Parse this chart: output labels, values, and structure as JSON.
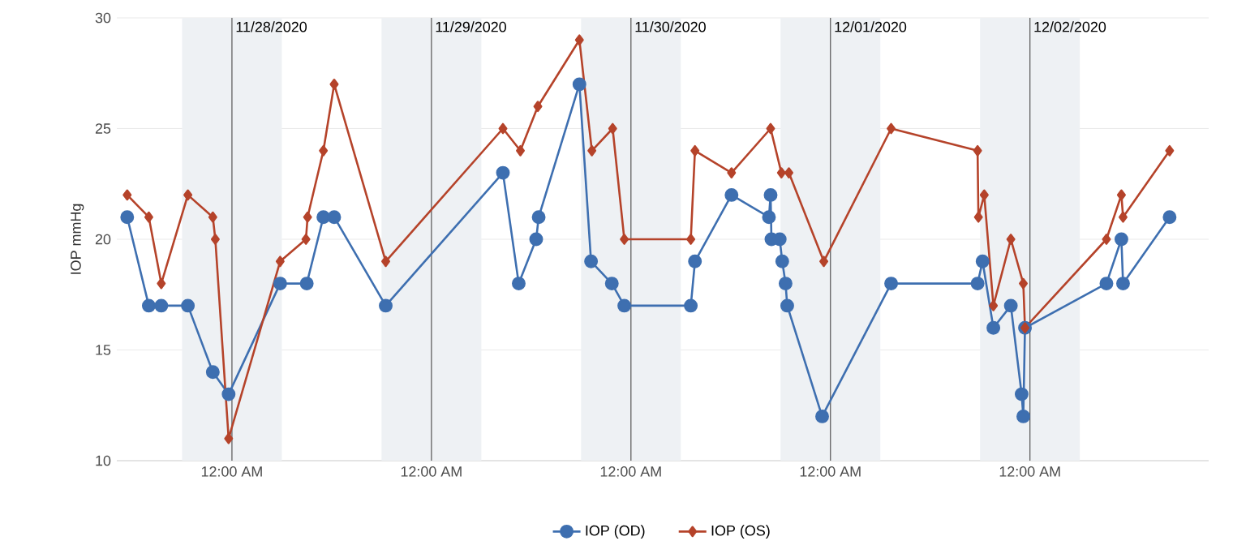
{
  "chart_data": {
    "type": "line",
    "ylabel": "IOP mmHg",
    "xlim": [
      "2020-11-27T10:09",
      "2020-12-02T21:30"
    ],
    "xticks": [
      {
        "value": "2020-11-28T00:00",
        "label": "12:00 AM"
      },
      {
        "value": "2020-11-29T00:00",
        "label": "12:00 AM"
      },
      {
        "value": "2020-11-30T00:00",
        "label": "12:00 AM"
      },
      {
        "value": "2020-12-01T00:00",
        "label": "12:00 AM"
      },
      {
        "value": "2020-12-02T00:00",
        "label": "12:00 AM"
      }
    ],
    "ylim": [
      10,
      30
    ],
    "yticks": [
      10,
      15,
      20,
      25,
      30
    ],
    "grid": "y",
    "legend": "bottom",
    "ref_lines": [
      {
        "axis": "x",
        "value": "2020-11-28",
        "label": "11/28/2020",
        "color": "#555555"
      },
      {
        "axis": "x",
        "value": "2020-11-29",
        "label": "11/29/2020",
        "color": "#555555"
      },
      {
        "axis": "x",
        "value": "2020-11-30",
        "label": "11/30/2020",
        "color": "#555555"
      },
      {
        "axis": "x",
        "value": "2020-12-01",
        "label": "12/01/2020",
        "color": "#555555"
      },
      {
        "axis": "x",
        "value": "2020-12-02",
        "label": "12/02/2020",
        "color": "#555555"
      }
    ],
    "bands": [
      {
        "axis": "x",
        "from": "2020-11-27T18:00",
        "to": "2020-11-28T06:00",
        "color": "#eef1f4"
      },
      {
        "axis": "x",
        "from": "2020-11-28T18:00",
        "to": "2020-11-29T06:00",
        "color": "#eef1f4"
      },
      {
        "axis": "x",
        "from": "2020-11-29T18:00",
        "to": "2020-11-30T06:00",
        "color": "#eef1f4"
      },
      {
        "axis": "x",
        "from": "2020-11-30T18:00",
        "to": "2020-12-01T06:00",
        "color": "#eef1f4"
      },
      {
        "axis": "x",
        "from": "2020-12-01T18:00",
        "to": "2020-12-02T06:00",
        "color": "#eef1f4"
      }
    ],
    "series": [
      {
        "name": "IOP (OD)",
        "color": "#3e6fb0",
        "marker": "circle",
        "x": [
          "2020-11-27T11:24",
          "2020-11-27T14:00",
          "2020-11-27T15:30",
          "2020-11-27T18:42",
          "2020-11-27T21:42",
          "2020-11-27T23:36",
          "2020-11-28T05:48",
          "2020-11-28T09:00",
          "2020-11-28T11:00",
          "2020-11-28T12:18",
          "2020-11-28T18:30",
          "2020-11-29T08:36",
          "2020-11-29T10:30",
          "2020-11-29T12:36",
          "2020-11-29T12:54",
          "2020-11-29T17:48",
          "2020-11-29T19:12",
          "2020-11-29T21:42",
          "2020-11-29T23:12",
          "2020-11-30T07:12",
          "2020-11-30T07:42",
          "2020-11-30T12:06",
          "2020-11-30T16:36",
          "2020-11-30T16:48",
          "2020-11-30T16:54",
          "2020-11-30T17:54",
          "2020-11-30T18:12",
          "2020-11-30T18:36",
          "2020-11-30T18:48",
          "2020-11-30T23:00",
          "2020-12-01T07:18",
          "2020-12-01T17:42",
          "2020-12-01T18:18",
          "2020-12-01T19:36",
          "2020-12-01T21:42",
          "2020-12-01T23:00",
          "2020-12-01T23:12",
          "2020-12-01T23:24",
          "2020-12-02T09:12",
          "2020-12-02T11:00",
          "2020-12-02T11:12",
          "2020-12-02T16:48"
        ],
        "values": [
          21,
          17,
          17,
          17,
          14,
          13,
          18,
          18,
          21,
          21,
          17,
          23,
          18,
          20,
          21,
          27,
          19,
          18,
          17,
          17,
          19,
          22,
          21,
          22,
          20,
          20,
          19,
          18,
          17,
          12,
          18,
          18,
          19,
          16,
          17,
          13,
          12,
          16,
          18,
          20,
          18,
          21
        ]
      },
      {
        "name": "IOP (OS)",
        "color": "#b5432a",
        "marker": "diamond",
        "x": [
          "2020-11-27T11:24",
          "2020-11-27T14:00",
          "2020-11-27T15:30",
          "2020-11-27T18:42",
          "2020-11-27T21:42",
          "2020-11-27T22:00",
          "2020-11-27T23:36",
          "2020-11-28T05:48",
          "2020-11-28T08:54",
          "2020-11-28T09:06",
          "2020-11-28T11:00",
          "2020-11-28T12:18",
          "2020-11-28T18:30",
          "2020-11-29T08:36",
          "2020-11-29T10:42",
          "2020-11-29T12:48",
          "2020-11-29T17:48",
          "2020-11-29T19:18",
          "2020-11-29T21:48",
          "2020-11-29T23:12",
          "2020-11-30T07:12",
          "2020-11-30T07:42",
          "2020-11-30T12:06",
          "2020-11-30T16:48",
          "2020-11-30T18:06",
          "2020-11-30T19:00",
          "2020-11-30T23:12",
          "2020-12-01T07:18",
          "2020-12-01T17:42",
          "2020-12-01T17:48",
          "2020-12-01T18:30",
          "2020-12-01T19:36",
          "2020-12-01T21:42",
          "2020-12-01T23:12",
          "2020-12-01T23:24",
          "2020-12-02T09:12",
          "2020-12-02T11:00",
          "2020-12-02T11:12",
          "2020-12-02T16:48"
        ],
        "values": [
          22,
          21,
          18,
          22,
          21,
          20,
          11,
          19,
          20,
          21,
          24,
          27,
          19,
          25,
          24,
          26,
          29,
          24,
          25,
          20,
          20,
          24,
          23,
          25,
          23,
          23,
          19,
          25,
          24,
          21,
          22,
          17,
          20,
          18,
          16,
          20,
          22,
          21,
          24
        ]
      }
    ]
  }
}
